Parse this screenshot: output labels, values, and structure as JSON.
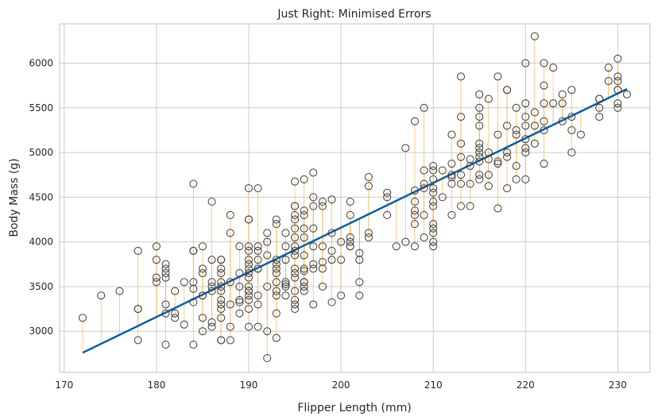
{
  "chart_data": {
    "type": "scatter",
    "title": "Just Right: Minimised Errors",
    "xlabel": "Flipper Length (mm)",
    "ylabel": "Body Mass (g)",
    "xlim": [
      169.5,
      233.5
    ],
    "ylim": [
      2540,
      6440
    ],
    "xticks": [
      170,
      180,
      190,
      200,
      210,
      220,
      230
    ],
    "yticks": [
      3000,
      3500,
      4000,
      4500,
      5000,
      5500,
      6000
    ],
    "grid": true,
    "colors": {
      "points_edge": "#3a3a3a",
      "residual_lines": "#f5b041",
      "fit_line": "#0a5ea8",
      "grid": "#cccccc",
      "frame": "#cccccc"
    },
    "fit_line": {
      "x": [
        172,
        231
      ],
      "y": [
        2760,
        5710
      ]
    },
    "points": [
      [
        172,
        3150
      ],
      [
        174,
        3400
      ],
      [
        176,
        3450
      ],
      [
        178,
        3900
      ],
      [
        178,
        3250
      ],
      [
        178,
        3250
      ],
      [
        178,
        2900
      ],
      [
        180,
        3950
      ],
      [
        180,
        3800
      ],
      [
        180,
        3600
      ],
      [
        180,
        3550
      ],
      [
        181,
        3750
      ],
      [
        181,
        3700
      ],
      [
        181,
        3650
      ],
      [
        181,
        3600
      ],
      [
        181,
        3300
      ],
      [
        181,
        3200
      ],
      [
        181,
        2850
      ],
      [
        182,
        3450
      ],
      [
        182,
        3200
      ],
      [
        182,
        3150
      ],
      [
        183,
        3550
      ],
      [
        183,
        3075
      ],
      [
        184,
        4650
      ],
      [
        184,
        3900
      ],
      [
        184,
        3900
      ],
      [
        184,
        3550
      ],
      [
        184,
        3475
      ],
      [
        184,
        3325
      ],
      [
        184,
        2850
      ],
      [
        185,
        3950
      ],
      [
        185,
        3700
      ],
      [
        185,
        3650
      ],
      [
        185,
        3400
      ],
      [
        185,
        3400
      ],
      [
        185,
        3150
      ],
      [
        185,
        3000
      ],
      [
        186,
        4450
      ],
      [
        186,
        3800
      ],
      [
        186,
        3550
      ],
      [
        186,
        3500
      ],
      [
        186,
        3450
      ],
      [
        186,
        3100
      ],
      [
        186,
        3050
      ],
      [
        187,
        3800
      ],
      [
        187,
        3800
      ],
      [
        187,
        3700
      ],
      [
        187,
        3650
      ],
      [
        187,
        3550
      ],
      [
        187,
        3500
      ],
      [
        187,
        3450
      ],
      [
        187,
        3350
      ],
      [
        187,
        3300
      ],
      [
        187,
        3250
      ],
      [
        187,
        3150
      ],
      [
        187,
        2900
      ],
      [
        187,
        2900
      ],
      [
        188,
        4300
      ],
      [
        188,
        4100
      ],
      [
        188,
        3550
      ],
      [
        188,
        3300
      ],
      [
        188,
        3050
      ],
      [
        188,
        2900
      ],
      [
        189,
        3950
      ],
      [
        189,
        3650
      ],
      [
        189,
        3500
      ],
      [
        189,
        3350
      ],
      [
        189,
        3325
      ],
      [
        189,
        3200
      ],
      [
        190,
        4600
      ],
      [
        190,
        4250
      ],
      [
        190,
        4250
      ],
      [
        190,
        3950
      ],
      [
        190,
        3900
      ],
      [
        190,
        3800
      ],
      [
        190,
        3750
      ],
      [
        190,
        3700
      ],
      [
        190,
        3650
      ],
      [
        190,
        3600
      ],
      [
        190,
        3500
      ],
      [
        190,
        3450
      ],
      [
        190,
        3450
      ],
      [
        190,
        3400
      ],
      [
        190,
        3350
      ],
      [
        190,
        3250
      ],
      [
        190,
        3050
      ],
      [
        191,
        4600
      ],
      [
        191,
        3950
      ],
      [
        191,
        3900
      ],
      [
        191,
        3800
      ],
      [
        191,
        3700
      ],
      [
        191,
        3700
      ],
      [
        191,
        3400
      ],
      [
        191,
        3300
      ],
      [
        191,
        3050
      ],
      [
        192,
        4100
      ],
      [
        192,
        4000
      ],
      [
        192,
        3850
      ],
      [
        192,
        3500
      ],
      [
        192,
        3000
      ],
      [
        192,
        2700
      ],
      [
        193,
        4250
      ],
      [
        193,
        4200
      ],
      [
        193,
        3800
      ],
      [
        193,
        3750
      ],
      [
        193,
        3700
      ],
      [
        193,
        3650
      ],
      [
        193,
        3550
      ],
      [
        193,
        3450
      ],
      [
        193,
        3400
      ],
      [
        193,
        3200
      ],
      [
        193,
        2925
      ],
      [
        194,
        4100
      ],
      [
        194,
        3950
      ],
      [
        194,
        3800
      ],
      [
        194,
        3550
      ],
      [
        194,
        3525
      ],
      [
        194,
        3500
      ],
      [
        194,
        3400
      ],
      [
        195,
        4675
      ],
      [
        195,
        4400
      ],
      [
        195,
        4400
      ],
      [
        195,
        4300
      ],
      [
        195,
        4250
      ],
      [
        195,
        4150
      ],
      [
        195,
        4050
      ],
      [
        195,
        3950
      ],
      [
        195,
        3900
      ],
      [
        195,
        3850
      ],
      [
        195,
        3700
      ],
      [
        195,
        3650
      ],
      [
        195,
        3600
      ],
      [
        195,
        3450
      ],
      [
        195,
        3350
      ],
      [
        195,
        3300
      ],
      [
        195,
        3250
      ],
      [
        196,
        4700
      ],
      [
        196,
        4350
      ],
      [
        196,
        4300
      ],
      [
        196,
        4150
      ],
      [
        196,
        4050
      ],
      [
        196,
        3850
      ],
      [
        196,
        3700
      ],
      [
        196,
        3675
      ],
      [
        196,
        3550
      ],
      [
        196,
        3550
      ],
      [
        196,
        3500
      ],
      [
        196,
        3450
      ],
      [
        197,
        4775
      ],
      [
        197,
        4500
      ],
      [
        197,
        4400
      ],
      [
        197,
        4150
      ],
      [
        197,
        3950
      ],
      [
        197,
        3750
      ],
      [
        197,
        3700
      ],
      [
        197,
        3300
      ],
      [
        198,
        4450
      ],
      [
        198,
        4400
      ],
      [
        198,
        3950
      ],
      [
        198,
        3775
      ],
      [
        198,
        3700
      ],
      [
        198,
        3500
      ],
      [
        199,
        4475
      ],
      [
        199,
        4100
      ],
      [
        199,
        3900
      ],
      [
        199,
        3800
      ],
      [
        199,
        3325
      ],
      [
        200,
        4000
      ],
      [
        200,
        3800
      ],
      [
        200,
        3400
      ],
      [
        201,
        4450
      ],
      [
        201,
        4300
      ],
      [
        201,
        4050
      ],
      [
        201,
        4000
      ],
      [
        201,
        3950
      ],
      [
        201,
        3950
      ],
      [
        202,
        3875
      ],
      [
        202,
        3800
      ],
      [
        202,
        3550
      ],
      [
        202,
        3400
      ],
      [
        203,
        4725
      ],
      [
        203,
        4625
      ],
      [
        203,
        4100
      ],
      [
        203,
        4050
      ],
      [
        205,
        4550
      ],
      [
        205,
        4500
      ],
      [
        205,
        4300
      ],
      [
        206,
        3950
      ],
      [
        207,
        5050
      ],
      [
        207,
        4000
      ],
      [
        208,
        5350
      ],
      [
        208,
        4575
      ],
      [
        208,
        4450
      ],
      [
        208,
        4350
      ],
      [
        208,
        4300
      ],
      [
        208,
        4200
      ],
      [
        208,
        3950
      ],
      [
        209,
        5500
      ],
      [
        209,
        4800
      ],
      [
        209,
        4650
      ],
      [
        209,
        4600
      ],
      [
        209,
        4300
      ],
      [
        209,
        4050
      ],
      [
        210,
        4850
      ],
      [
        210,
        4800
      ],
      [
        210,
        4700
      ],
      [
        210,
        4600
      ],
      [
        210,
        4550
      ],
      [
        210,
        4450
      ],
      [
        210,
        4400
      ],
      [
        210,
        4200
      ],
      [
        210,
        4150
      ],
      [
        210,
        4100
      ],
      [
        210,
        4000
      ],
      [
        210,
        3950
      ],
      [
        211,
        4800
      ],
      [
        211,
        4500
      ],
      [
        212,
        5200
      ],
      [
        212,
        4875
      ],
      [
        212,
        4750
      ],
      [
        212,
        4725
      ],
      [
        212,
        4650
      ],
      [
        212,
        4300
      ],
      [
        213,
        5850
      ],
      [
        213,
        5400
      ],
      [
        213,
        5100
      ],
      [
        213,
        4950
      ],
      [
        213,
        4750
      ],
      [
        213,
        4650
      ],
      [
        213,
        4400
      ],
      [
        214,
        4925
      ],
      [
        214,
        4850
      ],
      [
        214,
        4650
      ],
      [
        214,
        4400
      ],
      [
        215,
        5650
      ],
      [
        215,
        5500
      ],
      [
        215,
        5400
      ],
      [
        215,
        5300
      ],
      [
        215,
        5100
      ],
      [
        215,
        5050
      ],
      [
        215,
        5000
      ],
      [
        215,
        4950
      ],
      [
        215,
        4900
      ],
      [
        215,
        4750
      ],
      [
        215,
        4700
      ],
      [
        216,
        5600
      ],
      [
        216,
        5000
      ],
      [
        216,
        4925
      ],
      [
        216,
        4750
      ],
      [
        216,
        4625
      ],
      [
        217,
        5850
      ],
      [
        217,
        5200
      ],
      [
        217,
        4900
      ],
      [
        217,
        4875
      ],
      [
        217,
        4375
      ],
      [
        218,
        5700
      ],
      [
        218,
        5700
      ],
      [
        218,
        5300
      ],
      [
        218,
        5000
      ],
      [
        218,
        4950
      ],
      [
        218,
        4600
      ],
      [
        219,
        5500
      ],
      [
        219,
        5250
      ],
      [
        219,
        5200
      ],
      [
        219,
        4850
      ],
      [
        219,
        4700
      ],
      [
        220,
        6000
      ],
      [
        220,
        5550
      ],
      [
        220,
        5400
      ],
      [
        220,
        5300
      ],
      [
        220,
        5150
      ],
      [
        220,
        5050
      ],
      [
        220,
        5000
      ],
      [
        220,
        4700
      ],
      [
        221,
        6300
      ],
      [
        221,
        5450
      ],
      [
        221,
        5300
      ],
      [
        221,
        5100
      ],
      [
        222,
        6000
      ],
      [
        222,
        5750
      ],
      [
        222,
        5550
      ],
      [
        222,
        5350
      ],
      [
        222,
        5250
      ],
      [
        222,
        4875
      ],
      [
        223,
        5950
      ],
      [
        223,
        5550
      ],
      [
        224,
        5650
      ],
      [
        224,
        5550
      ],
      [
        224,
        5350
      ],
      [
        225,
        5700
      ],
      [
        225,
        5400
      ],
      [
        225,
        5250
      ],
      [
        225,
        5000
      ],
      [
        226,
        5200
      ],
      [
        228,
        5600
      ],
      [
        228,
        5600
      ],
      [
        228,
        5500
      ],
      [
        228,
        5400
      ],
      [
        229,
        5950
      ],
      [
        229,
        5800
      ],
      [
        230,
        6050
      ],
      [
        230,
        5850
      ],
      [
        230,
        5800
      ],
      [
        230,
        5700
      ],
      [
        230,
        5700
      ],
      [
        230,
        5550
      ],
      [
        230,
        5500
      ],
      [
        231,
        5650
      ]
    ]
  }
}
